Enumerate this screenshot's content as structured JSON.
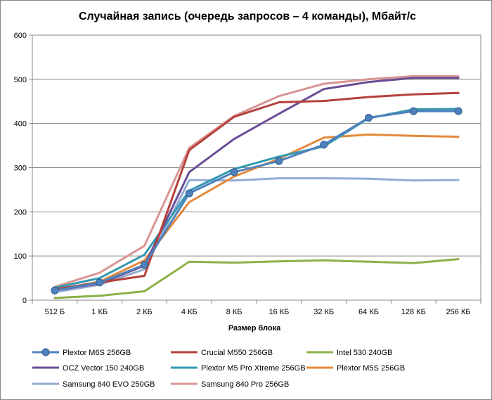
{
  "chart_data": {
    "type": "line",
    "title": "Случайная запись (очередь запросов – 4 команды), Мбайт/с",
    "xlabel": "Размер блока",
    "ylabel": "",
    "categories": [
      "512 Б",
      "1 КБ",
      "2 КБ",
      "4 КБ",
      "8 КБ",
      "16 КБ",
      "32 КБ",
      "64 КБ",
      "128 КБ",
      "256 КБ"
    ],
    "ylim": [
      0,
      600
    ],
    "yticks": [
      0,
      100,
      200,
      300,
      400,
      500,
      600
    ],
    "grid": true,
    "legend_position": "bottom",
    "series": [
      {
        "name": "Plextor M6S 256GB",
        "color": "#4F81BD",
        "markers": true,
        "values": [
          22,
          40,
          80,
          242,
          290,
          315,
          352,
          413,
          428,
          428
        ]
      },
      {
        "name": "Crucial M550 256GB",
        "color": "#B5403A",
        "values": [
          25,
          40,
          55,
          340,
          415,
          448,
          451,
          460,
          466,
          469
        ]
      },
      {
        "name": "Intel 530 240GB",
        "color": "#8BB14A",
        "values": [
          5,
          10,
          20,
          87,
          85,
          88,
          90,
          87,
          84,
          93
        ]
      },
      {
        "name": "OCZ Vector 150 240GB",
        "color": "#6A4D96",
        "values": [
          22,
          38,
          78,
          290,
          365,
          422,
          478,
          494,
          503,
          503
        ]
      },
      {
        "name": "Plextor M5 Pro Xtreme 256GB",
        "color": "#3399B0",
        "values": [
          28,
          50,
          103,
          248,
          297,
          325,
          348,
          412,
          432,
          433
        ]
      },
      {
        "name": "Plextor M5S 256GB",
        "color": "#E4893B",
        "values": [
          23,
          42,
          90,
          222,
          280,
          320,
          368,
          375,
          372,
          370
        ]
      },
      {
        "name": "Samsung 840 EVO 250GB",
        "color": "#93AAD2",
        "values": [
          18,
          35,
          70,
          272,
          271,
          276,
          276,
          275,
          271,
          272
        ]
      },
      {
        "name": "Samsung 840 Pro 256GB",
        "color": "#D99594",
        "values": [
          30,
          62,
          123,
          345,
          417,
          462,
          490,
          500,
          507,
          507
        ]
      }
    ]
  }
}
